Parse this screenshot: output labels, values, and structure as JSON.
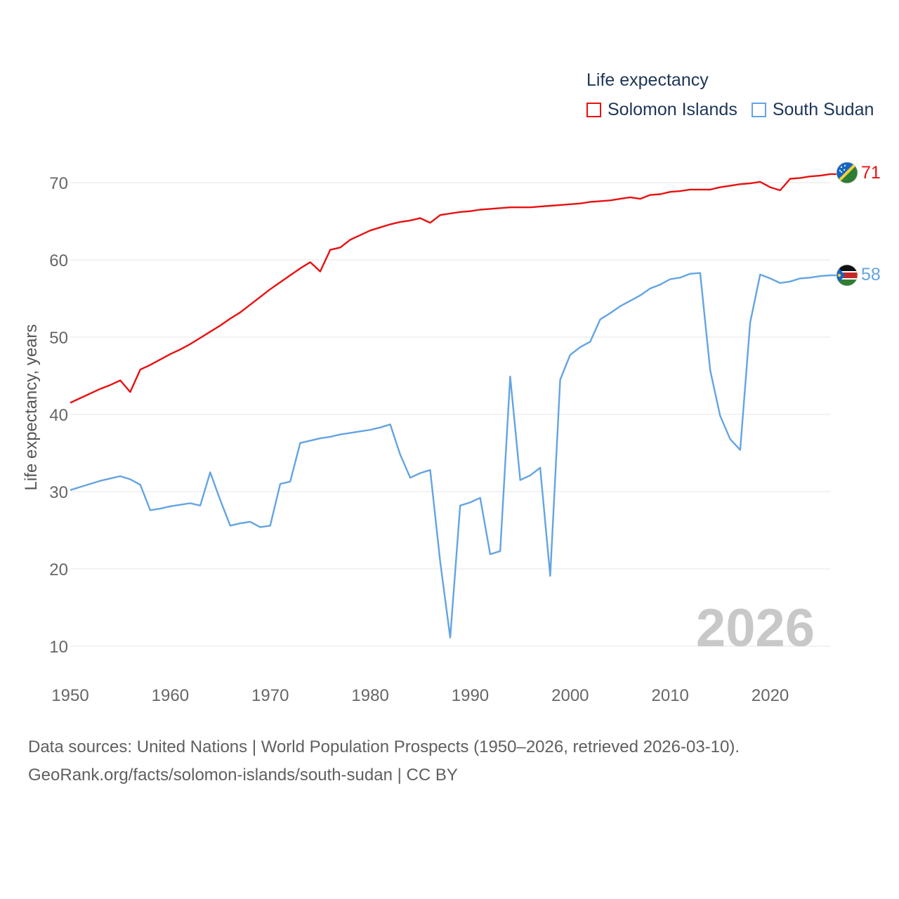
{
  "colors": {
    "solomon": "#e8100f",
    "sudan": "#63a4e2",
    "grid": "#e6e6e6",
    "axis_text": "#666666",
    "year_watermark": "#c8c8c8"
  },
  "legend": {
    "title": "Life expectancy"
  },
  "watermark_year": "2026",
  "footer": {
    "line1": "Data sources: United Nations | World Population Prospects (1950–2026, retrieved 2026-03-10).",
    "line2": "GeoRank.org/facts/solomon-islands/south-sudan | CC BY"
  },
  "chart_data": {
    "type": "line",
    "title": "Life expectancy",
    "xlabel": "",
    "ylabel": "Life expectancy, years",
    "xlim": [
      1950,
      2026
    ],
    "ylim": [
      10,
      70
    ],
    "grid": true,
    "legend_position": "top-right",
    "x_ticks": [
      "1950",
      "1960",
      "1970",
      "1980",
      "1990",
      "2000",
      "2010",
      "2020"
    ],
    "y_ticks": [
      "10",
      "20",
      "30",
      "40",
      "50",
      "60",
      "70"
    ],
    "x": [
      1950,
      1951,
      1952,
      1953,
      1954,
      1955,
      1956,
      1957,
      1958,
      1959,
      1960,
      1961,
      1962,
      1963,
      1964,
      1965,
      1966,
      1967,
      1968,
      1969,
      1970,
      1971,
      1972,
      1973,
      1974,
      1975,
      1976,
      1977,
      1978,
      1979,
      1980,
      1981,
      1982,
      1983,
      1984,
      1985,
      1986,
      1987,
      1988,
      1989,
      1990,
      1991,
      1992,
      1993,
      1994,
      1995,
      1996,
      1997,
      1998,
      1999,
      2000,
      2001,
      2002,
      2003,
      2004,
      2005,
      2006,
      2007,
      2008,
      2009,
      2010,
      2011,
      2012,
      2013,
      2014,
      2015,
      2016,
      2017,
      2018,
      2019,
      2020,
      2021,
      2022,
      2023,
      2024,
      2025,
      2026
    ],
    "series": [
      {
        "name": "Solomon Islands",
        "end_label": "71",
        "values": [
          41.5,
          42.1,
          42.7,
          43.3,
          43.8,
          44.4,
          42.9,
          45.8,
          46.4,
          47.1,
          47.8,
          48.4,
          49.1,
          49.9,
          50.7,
          51.5,
          52.4,
          53.2,
          54.2,
          55.2,
          56.2,
          57.1,
          58.0,
          58.9,
          59.7,
          58.5,
          61.3,
          61.6,
          62.6,
          63.2,
          63.8,
          64.2,
          64.6,
          64.9,
          65.1,
          65.4,
          64.8,
          65.8,
          66.0,
          66.2,
          66.3,
          66.5,
          66.6,
          66.7,
          66.8,
          66.8,
          66.8,
          66.9,
          67.0,
          67.1,
          67.2,
          67.3,
          67.5,
          67.6,
          67.7,
          67.9,
          68.1,
          67.9,
          68.4,
          68.5,
          68.8,
          68.9,
          69.1,
          69.1,
          69.1,
          69.4,
          69.6,
          69.8,
          69.9,
          70.1,
          69.4,
          69.0,
          70.5,
          70.6,
          70.8,
          70.9,
          71.1
        ]
      },
      {
        "name": "South Sudan",
        "end_label": "58",
        "values": [
          30.2,
          30.6,
          31.0,
          31.4,
          31.7,
          32.0,
          31.6,
          30.9,
          27.6,
          27.8,
          28.1,
          28.3,
          28.5,
          28.2,
          32.5,
          28.9,
          25.6,
          25.9,
          26.1,
          25.4,
          25.6,
          31.0,
          31.3,
          36.3,
          36.6,
          36.9,
          37.1,
          37.4,
          37.6,
          37.8,
          38.0,
          38.3,
          38.7,
          34.8,
          31.8,
          32.4,
          32.8,
          20.9,
          11.1,
          28.2,
          28.6,
          29.2,
          21.9,
          22.3,
          44.9,
          31.5,
          32.1,
          33.1,
          19.1,
          44.5,
          47.7,
          48.7,
          49.4,
          52.3,
          53.1,
          54.0,
          54.7,
          55.4,
          56.3,
          56.8,
          57.5,
          57.7,
          58.2,
          58.3,
          45.7,
          39.8,
          36.8,
          35.4,
          51.9,
          58.1,
          57.6,
          57.0,
          57.2,
          57.6,
          57.7,
          57.9,
          58.0
        ]
      }
    ]
  }
}
